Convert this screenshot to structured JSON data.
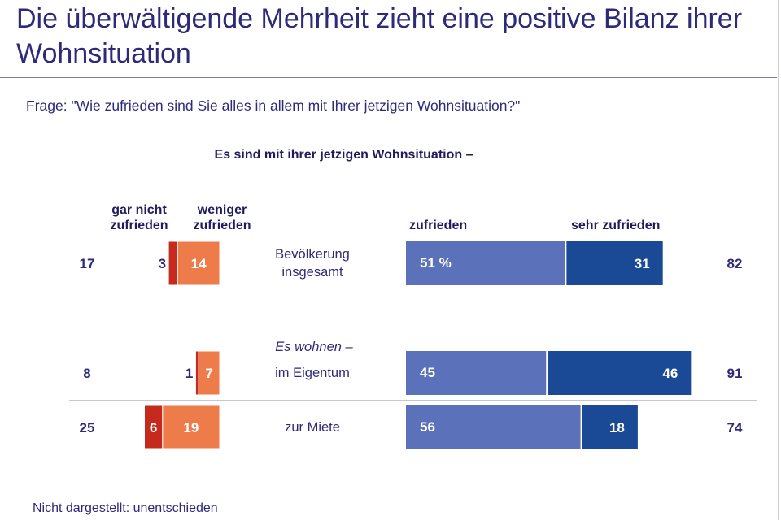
{
  "title": "Die überwältigende Mehrheit zieht eine positive Bilanz ihrer Wohnsituation",
  "question": "Frage: \"Wie zufrieden sind Sie alles in allem mit Ihrer jetzigen Wohnsituation?\"",
  "subheading": "Es sind mit ihrer jetzigen Wohnsituation –",
  "column_headers": {
    "gar_nicht": "gar nicht zufrieden",
    "weniger": "weniger zufrieden",
    "zufrieden": "zufrieden",
    "sehr": "sehr zufrieden"
  },
  "group_label": "Es wohnen –",
  "footnote": "Nicht dargestellt: unentschieden",
  "colors": {
    "gar_nicht": "#c62a1e",
    "weniger": "#ee7b4a",
    "zufrieden": "#5b72bb",
    "sehr": "#1a4a96",
    "text": "#2e2a7a"
  },
  "chart_data": {
    "type": "bar",
    "orientation": "horizontal-diverging",
    "categories": [
      "Bevölkerung insgesamt",
      "im Eigentum",
      "zur Miete"
    ],
    "series": [
      {
        "name": "gar nicht zufrieden",
        "values": [
          3,
          1,
          6
        ],
        "labels": [
          "3",
          "1",
          "6"
        ]
      },
      {
        "name": "weniger zufrieden",
        "values": [
          14,
          7,
          19
        ],
        "labels": [
          "14",
          "7",
          "19"
        ]
      },
      {
        "name": "zufrieden",
        "values": [
          51,
          45,
          56
        ],
        "labels": [
          "51 %",
          "45",
          "56"
        ]
      },
      {
        "name": "sehr zufrieden",
        "values": [
          31,
          46,
          18
        ],
        "labels": [
          "31",
          "46",
          "18"
        ]
      }
    ],
    "negative_totals": [
      17,
      8,
      25
    ],
    "positive_totals": [
      82,
      91,
      74
    ]
  }
}
